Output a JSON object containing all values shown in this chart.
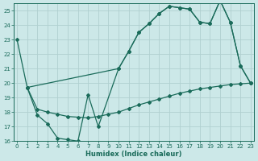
{
  "line1_x": [
    0,
    1,
    10,
    11,
    12,
    13,
    14,
    15,
    16,
    17,
    18,
    19,
    20,
    21,
    22,
    23
  ],
  "line1_y": [
    23.0,
    19.7,
    21.0,
    22.2,
    23.5,
    24.1,
    24.8,
    25.3,
    25.2,
    25.1,
    24.2,
    24.1,
    25.7,
    24.2,
    21.2,
    20.0
  ],
  "line2_x": [
    1,
    2,
    3,
    4,
    5,
    6,
    7,
    8,
    10,
    11,
    12,
    13,
    14,
    15,
    16,
    17,
    18,
    19,
    20,
    21,
    22,
    23
  ],
  "line2_y": [
    19.7,
    17.8,
    17.2,
    16.2,
    16.1,
    16.0,
    19.2,
    17.0,
    21.0,
    22.2,
    23.5,
    24.1,
    24.8,
    25.3,
    25.2,
    25.1,
    24.2,
    24.1,
    25.7,
    24.2,
    21.2,
    20.0
  ],
  "line3_x": [
    1,
    2,
    3,
    4,
    5,
    6,
    7,
    8,
    9,
    10,
    11,
    12,
    13,
    14,
    15,
    16,
    17,
    18,
    19,
    20,
    21,
    22,
    23
  ],
  "line3_y": [
    19.7,
    18.2,
    18.0,
    17.85,
    17.7,
    17.65,
    17.6,
    17.7,
    17.85,
    18.0,
    18.25,
    18.5,
    18.7,
    18.9,
    19.1,
    19.3,
    19.45,
    19.6,
    19.7,
    19.8,
    19.9,
    19.95,
    20.0
  ],
  "line_color": "#1a6b5a",
  "marker": "D",
  "markersize": 2.0,
  "linewidth": 0.9,
  "bg_color": "#cce8e8",
  "grid_color": "#b0d0d0",
  "xlabel": "Humidex (Indice chaleur)",
  "xlim": [
    -0.3,
    23.3
  ],
  "ylim": [
    16,
    25.5
  ],
  "yticks": [
    16,
    17,
    18,
    19,
    20,
    21,
    22,
    23,
    24,
    25
  ],
  "xticks": [
    0,
    1,
    2,
    3,
    4,
    5,
    6,
    7,
    8,
    9,
    10,
    11,
    12,
    13,
    14,
    15,
    16,
    17,
    18,
    19,
    20,
    21,
    22,
    23
  ]
}
